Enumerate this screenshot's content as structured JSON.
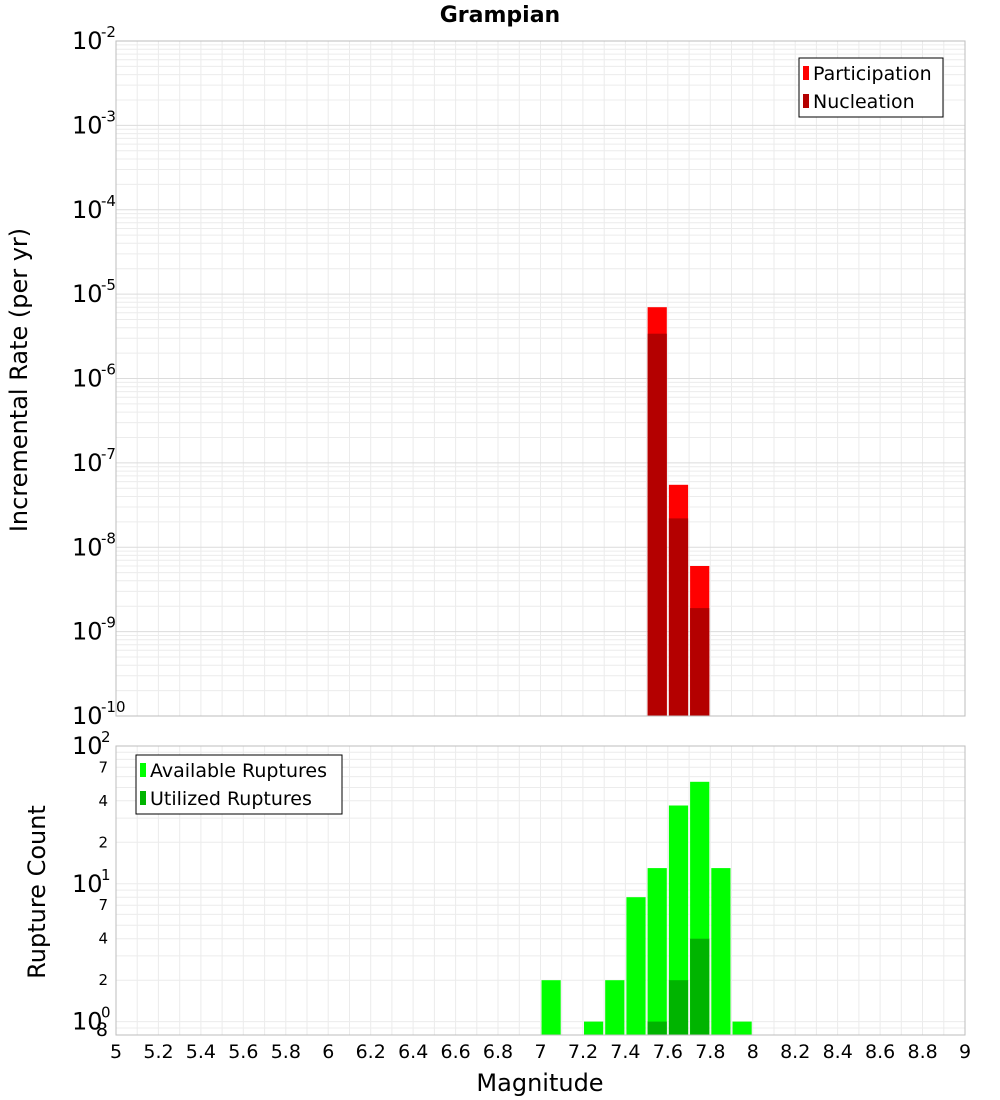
{
  "chart_data": [
    {
      "type": "bar",
      "panel": "top",
      "title": "Grampian",
      "ylabel": "Incremental Rate (per yr)",
      "y_scale": "log",
      "ylim": [
        1e-10,
        0.01
      ],
      "xlim": [
        5,
        9
      ],
      "bar_width": 0.1,
      "grid": true,
      "legend_position": "top-right",
      "y_ticks": [
        {
          "base": "10",
          "exp": "-2",
          "value": 0.01
        },
        {
          "base": "10",
          "exp": "-3",
          "value": 0.001
        },
        {
          "base": "10",
          "exp": "-4",
          "value": 0.0001
        },
        {
          "base": "10",
          "exp": "-5",
          "value": 1e-05
        },
        {
          "base": "10",
          "exp": "-6",
          "value": 1e-06
        },
        {
          "base": "10",
          "exp": "-7",
          "value": 1e-07
        },
        {
          "base": "10",
          "exp": "-8",
          "value": 1e-08
        },
        {
          "base": "10",
          "exp": "-9",
          "value": 1e-09
        },
        {
          "base": "10",
          "exp": "-10",
          "value": 1e-10
        }
      ],
      "series": [
        {
          "name": "Participation",
          "color": "#ff0000",
          "x": [
            7.55,
            7.65,
            7.75
          ],
          "values": [
            7e-06,
            5.5e-08,
            6e-09
          ]
        },
        {
          "name": "Nucleation",
          "color": "#b40000",
          "x": [
            7.55,
            7.65,
            7.75
          ],
          "values": [
            3.4e-06,
            2.2e-08,
            1.9e-09
          ]
        }
      ]
    },
    {
      "type": "bar",
      "panel": "bottom",
      "xlabel": "Magnitude",
      "ylabel": "Rupture Count",
      "y_scale": "log",
      "ylim": [
        0.8,
        100
      ],
      "xlim": [
        5,
        9
      ],
      "bar_width": 0.1,
      "grid": true,
      "legend_position": "top-left",
      "x_ticks": [
        "5",
        "5.2",
        "5.4",
        "5.6",
        "5.8",
        "6",
        "6.2",
        "6.4",
        "6.6",
        "6.8",
        "7",
        "7.2",
        "7.4",
        "7.6",
        "7.8",
        "8",
        "8.2",
        "8.4",
        "8.6",
        "8.8",
        "9"
      ],
      "y_major_ticks": [
        {
          "base": "10",
          "exp": "2",
          "value": 100
        },
        {
          "base": "10",
          "exp": "1",
          "value": 10
        },
        {
          "base": "10",
          "exp": "0",
          "value": 1
        }
      ],
      "y_minor_ticks": [
        {
          "label": "7",
          "value": 70
        },
        {
          "label": "4",
          "value": 40
        },
        {
          "label": "2",
          "value": 20
        },
        {
          "label": "7",
          "value": 7
        },
        {
          "label": "4",
          "value": 4
        },
        {
          "label": "2",
          "value": 2
        },
        {
          "label": "8",
          "value": 0.8
        }
      ],
      "series": [
        {
          "name": "Available Ruptures",
          "color": "#00ff00",
          "x": [
            7.05,
            7.25,
            7.35,
            7.45,
            7.55,
            7.65,
            7.75,
            7.85,
            7.95
          ],
          "values": [
            2,
            1,
            2,
            8,
            13,
            37,
            55,
            13,
            1
          ]
        },
        {
          "name": "Utilized Ruptures",
          "color": "#00b400",
          "x": [
            7.55,
            7.65,
            7.75
          ],
          "values": [
            1,
            2,
            4
          ]
        }
      ]
    }
  ]
}
